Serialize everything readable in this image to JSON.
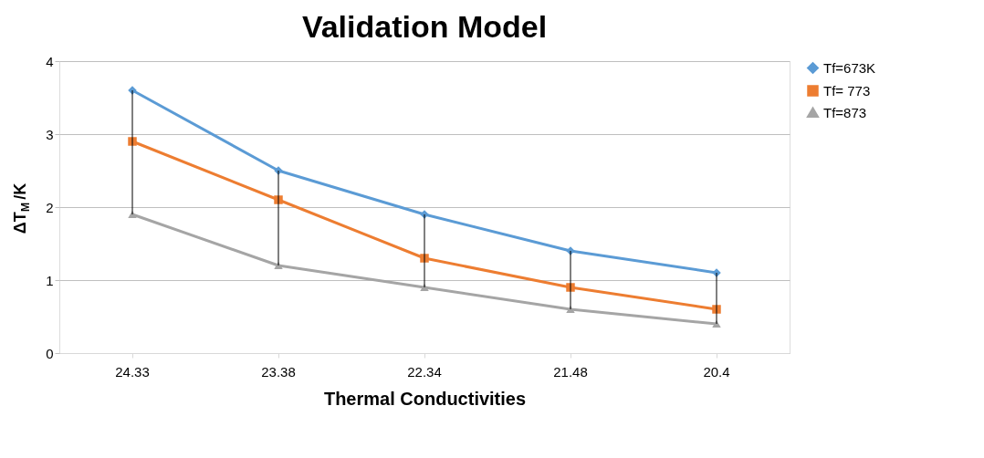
{
  "chart_data": {
    "type": "line",
    "title": "Validation Model",
    "xlabel": "Thermal Conductivities",
    "ylabel": "ΔT$_{M}$/K",
    "categories": [
      "24.33",
      "23.38",
      "22.34",
      "21.48",
      "20.4"
    ],
    "series": [
      {
        "name": "Tf=673K",
        "color": "#5b9bd5",
        "marker": "diamond",
        "values": [
          3.6,
          2.5,
          1.9,
          1.4,
          1.1
        ],
        "errors": [
          [
            1.9,
            3.6
          ],
          [
            1.2,
            2.5
          ],
          [
            0.9,
            1.9
          ],
          [
            0.6,
            1.4
          ],
          [
            0.4,
            1.1
          ]
        ]
      },
      {
        "name": "Tf= 773",
        "color": "#ed7d31",
        "marker": "square",
        "values": [
          2.9,
          2.1,
          1.3,
          0.9,
          0.6
        ]
      },
      {
        "name": "Tf=873",
        "color": "#a5a5a5",
        "marker": "triangle",
        "values": [
          1.9,
          1.2,
          0.9,
          0.6,
          0.4
        ]
      }
    ],
    "ylim": [
      0,
      4
    ],
    "yticks": [
      0,
      1,
      2,
      3,
      4
    ],
    "grid": "y",
    "legend": "right",
    "line_style": "solid"
  }
}
